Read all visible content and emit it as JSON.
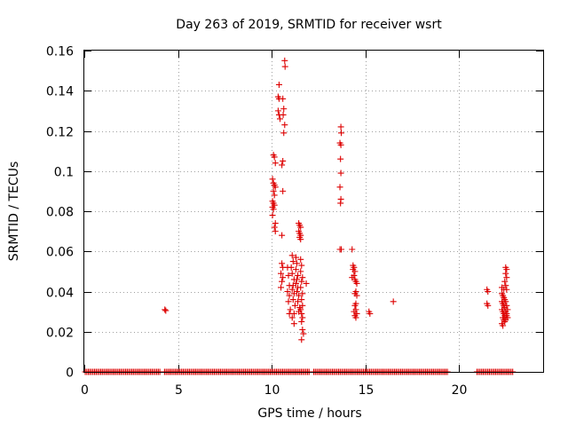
{
  "chart_data": {
    "type": "scatter",
    "title": "Day 263 of 2019, SRMTID for receiver wsrt",
    "xlabel": "GPS time / hours",
    "ylabel": "SRMTID / TECUs",
    "xlim": [
      0,
      24.5
    ],
    "ylim": [
      0,
      0.16
    ],
    "grid": true,
    "x_ticks": [
      0,
      5,
      10,
      15,
      20
    ],
    "x_tick_labels": [
      "0",
      "5",
      "10",
      "15",
      "20"
    ],
    "y_ticks": [
      0,
      0.02,
      0.04,
      0.06,
      0.08,
      0.1,
      0.12,
      0.14,
      0.16
    ],
    "y_tick_labels": [
      "0",
      "0.02",
      "0.04",
      "0.06",
      "0.08",
      "0.1",
      "0.12",
      "0.14",
      "0.16"
    ],
    "marker_color": "#dd0000",
    "series": [
      {
        "name": "SRMTID",
        "zero_baseline": {
          "y": 0,
          "x_start": 0.05,
          "x_end": 22.9,
          "step": 0.083,
          "gaps": [
            [
              4.05,
              4.25
            ],
            [
              12.05,
              12.25
            ],
            [
              19.4,
              20.9
            ]
          ]
        },
        "points": [
          [
            4.3,
            0.031
          ],
          [
            4.35,
            0.0305
          ],
          [
            10.1,
            0.108
          ],
          [
            10.15,
            0.107
          ],
          [
            10.2,
            0.104
          ],
          [
            10.05,
            0.096
          ],
          [
            10.1,
            0.094
          ],
          [
            10.15,
            0.093
          ],
          [
            10.2,
            0.092
          ],
          [
            10.1,
            0.09
          ],
          [
            10.15,
            0.088
          ],
          [
            10.05,
            0.085
          ],
          [
            10.1,
            0.084
          ],
          [
            10.15,
            0.083
          ],
          [
            10.05,
            0.082
          ],
          [
            10.1,
            0.081
          ],
          [
            10.05,
            0.078
          ],
          [
            10.2,
            0.074
          ],
          [
            10.15,
            0.072
          ],
          [
            10.2,
            0.07
          ],
          [
            10.4,
            0.143
          ],
          [
            10.35,
            0.137
          ],
          [
            10.4,
            0.136
          ],
          [
            10.35,
            0.13
          ],
          [
            10.4,
            0.128
          ],
          [
            10.45,
            0.126
          ],
          [
            10.7,
            0.155
          ],
          [
            10.72,
            0.152
          ],
          [
            10.6,
            0.136
          ],
          [
            10.65,
            0.131
          ],
          [
            10.62,
            0.128
          ],
          [
            10.7,
            0.123
          ],
          [
            10.65,
            0.119
          ],
          [
            10.6,
            0.105
          ],
          [
            10.55,
            0.103
          ],
          [
            10.6,
            0.09
          ],
          [
            10.55,
            0.068
          ],
          [
            10.55,
            0.054
          ],
          [
            10.6,
            0.052
          ],
          [
            10.5,
            0.049
          ],
          [
            10.6,
            0.047
          ],
          [
            10.55,
            0.045
          ],
          [
            10.5,
            0.042
          ],
          [
            10.85,
            0.052
          ],
          [
            10.9,
            0.048
          ],
          [
            10.95,
            0.043
          ],
          [
            10.85,
            0.04
          ],
          [
            10.95,
            0.038
          ],
          [
            10.9,
            0.035
          ],
          [
            11.0,
            0.031
          ],
          [
            10.95,
            0.029
          ],
          [
            11.1,
            0.058
          ],
          [
            11.15,
            0.055
          ],
          [
            11.05,
            0.052
          ],
          [
            11.1,
            0.049
          ],
          [
            11.2,
            0.046
          ],
          [
            11.15,
            0.043
          ],
          [
            11.1,
            0.041
          ],
          [
            11.2,
            0.039
          ],
          [
            11.15,
            0.036
          ],
          [
            11.25,
            0.033
          ],
          [
            11.2,
            0.029
          ],
          [
            11.1,
            0.027
          ],
          [
            11.2,
            0.024
          ],
          [
            11.3,
            0.057
          ],
          [
            11.35,
            0.054
          ],
          [
            11.3,
            0.051
          ],
          [
            11.4,
            0.048
          ],
          [
            11.35,
            0.046
          ],
          [
            11.3,
            0.044
          ],
          [
            11.4,
            0.042
          ],
          [
            11.35,
            0.04
          ],
          [
            11.45,
            0.038
          ],
          [
            11.4,
            0.035
          ],
          [
            11.5,
            0.032
          ],
          [
            11.45,
            0.03
          ],
          [
            11.45,
            0.074
          ],
          [
            11.5,
            0.073
          ],
          [
            11.55,
            0.072
          ],
          [
            11.45,
            0.07
          ],
          [
            11.5,
            0.069
          ],
          [
            11.55,
            0.068
          ],
          [
            11.5,
            0.067
          ],
          [
            11.55,
            0.066
          ],
          [
            11.55,
            0.056
          ],
          [
            11.6,
            0.053
          ],
          [
            11.55,
            0.05
          ],
          [
            11.65,
            0.047
          ],
          [
            11.6,
            0.045
          ],
          [
            11.55,
            0.042
          ],
          [
            11.65,
            0.039
          ],
          [
            11.6,
            0.036
          ],
          [
            11.65,
            0.033
          ],
          [
            11.55,
            0.031
          ],
          [
            11.6,
            0.029
          ],
          [
            11.65,
            0.027
          ],
          [
            11.6,
            0.025
          ],
          [
            11.65,
            0.021
          ],
          [
            11.7,
            0.019
          ],
          [
            11.6,
            0.016
          ],
          [
            11.85,
            0.044
          ],
          [
            13.7,
            0.122
          ],
          [
            13.72,
            0.119
          ],
          [
            13.65,
            0.114
          ],
          [
            13.7,
            0.113
          ],
          [
            13.68,
            0.106
          ],
          [
            13.7,
            0.099
          ],
          [
            13.65,
            0.092
          ],
          [
            13.7,
            0.086
          ],
          [
            13.68,
            0.084
          ],
          [
            13.65,
            0.061
          ],
          [
            13.72,
            0.061
          ],
          [
            14.3,
            0.061
          ],
          [
            14.35,
            0.053
          ],
          [
            14.4,
            0.052
          ],
          [
            14.35,
            0.051
          ],
          [
            14.45,
            0.05
          ],
          [
            14.4,
            0.048
          ],
          [
            14.3,
            0.047
          ],
          [
            14.45,
            0.046
          ],
          [
            14.5,
            0.045
          ],
          [
            14.55,
            0.044
          ],
          [
            14.5,
            0.04
          ],
          [
            14.45,
            0.039
          ],
          [
            14.55,
            0.038
          ],
          [
            14.5,
            0.034
          ],
          [
            14.45,
            0.033
          ],
          [
            14.5,
            0.031
          ],
          [
            14.4,
            0.03
          ],
          [
            14.55,
            0.029
          ],
          [
            14.45,
            0.028
          ],
          [
            14.5,
            0.027
          ],
          [
            15.2,
            0.03
          ],
          [
            15.25,
            0.029
          ],
          [
            16.5,
            0.035
          ],
          [
            21.5,
            0.041
          ],
          [
            21.55,
            0.04
          ],
          [
            21.5,
            0.034
          ],
          [
            21.55,
            0.033
          ],
          [
            22.3,
            0.042
          ],
          [
            22.4,
            0.041
          ],
          [
            22.5,
            0.052
          ],
          [
            22.55,
            0.051
          ],
          [
            22.5,
            0.049
          ],
          [
            22.55,
            0.047
          ],
          [
            22.45,
            0.045
          ],
          [
            22.5,
            0.043
          ],
          [
            22.55,
            0.041
          ],
          [
            22.3,
            0.039
          ],
          [
            22.35,
            0.038
          ],
          [
            22.4,
            0.037
          ],
          [
            22.45,
            0.036
          ],
          [
            22.3,
            0.035
          ],
          [
            22.35,
            0.034
          ],
          [
            22.4,
            0.033
          ],
          [
            22.45,
            0.032
          ],
          [
            22.5,
            0.035
          ],
          [
            22.55,
            0.033
          ],
          [
            22.3,
            0.031
          ],
          [
            22.35,
            0.03
          ],
          [
            22.4,
            0.029
          ],
          [
            22.45,
            0.028
          ],
          [
            22.5,
            0.03
          ],
          [
            22.55,
            0.029
          ],
          [
            22.35,
            0.027
          ],
          [
            22.4,
            0.026
          ],
          [
            22.45,
            0.025
          ],
          [
            22.3,
            0.024
          ],
          [
            22.35,
            0.023
          ],
          [
            22.5,
            0.026
          ],
          [
            22.55,
            0.028
          ],
          [
            22.6,
            0.031
          ],
          [
            22.6,
            0.027
          ]
        ]
      }
    ]
  }
}
